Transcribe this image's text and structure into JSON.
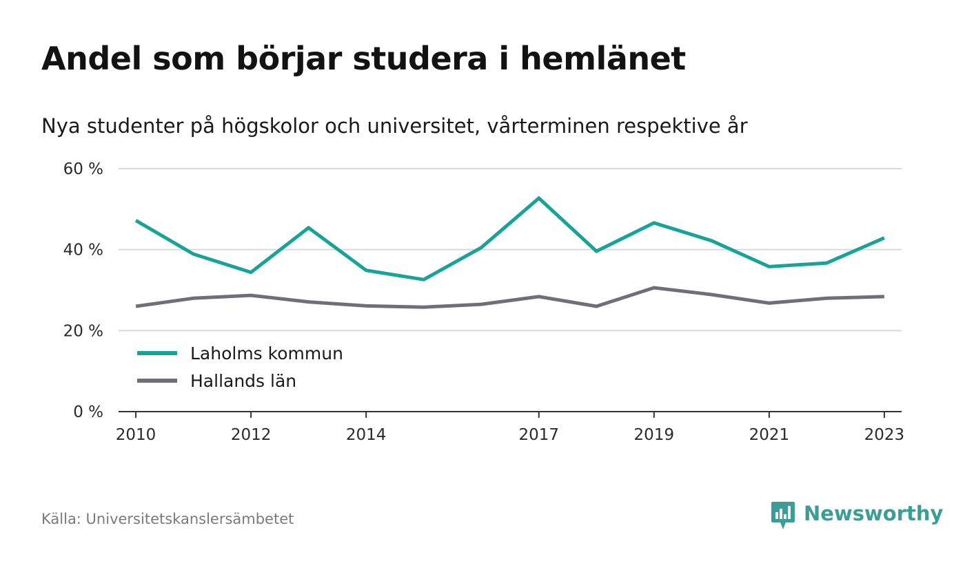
{
  "title": "Andel som börjar studera i hemlänet",
  "subtitle": "Nya studenter på högskolor och universitet, vårterminen respektive år",
  "source": "Källa: Universitetskanslersämbetet",
  "brand": {
    "name": "Newsworthy",
    "icon": "newsworthy-logo-icon",
    "color": "#3a9e97"
  },
  "chart_data": {
    "type": "line",
    "x": [
      2010,
      2011,
      2012,
      2013,
      2014,
      2015,
      2016,
      2017,
      2018,
      2019,
      2020,
      2021,
      2022,
      2023
    ],
    "x_tick_values": [
      2010,
      2012,
      2014,
      2017,
      2019,
      2021,
      2023
    ],
    "x_tick_labels": [
      "2010",
      "2012",
      "2014",
      "2017",
      "2019",
      "2021",
      "2023"
    ],
    "xlim": [
      2009.7,
      2023.3
    ],
    "ylim": [
      0,
      60
    ],
    "y_tick_values": [
      0,
      20,
      40,
      60
    ],
    "y_tick_labels": [
      "0 %",
      "20 %",
      "40 %",
      "60 %"
    ],
    "grid": true,
    "legend_position": "bottom-left",
    "series": [
      {
        "name": "Laholms kommun",
        "color": "#17a398",
        "values": [
          47.2,
          38.9,
          34.4,
          45.4,
          34.9,
          32.6,
          40.5,
          52.7,
          39.6,
          46.6,
          42.2,
          35.8,
          36.7,
          42.9
        ]
      },
      {
        "name": "Hallands län",
        "color": "#6f6f7a",
        "values": [
          26.0,
          28.0,
          28.7,
          27.1,
          26.1,
          25.8,
          26.5,
          28.4,
          26.0,
          30.6,
          28.9,
          26.8,
          28.0,
          28.4
        ]
      }
    ]
  }
}
